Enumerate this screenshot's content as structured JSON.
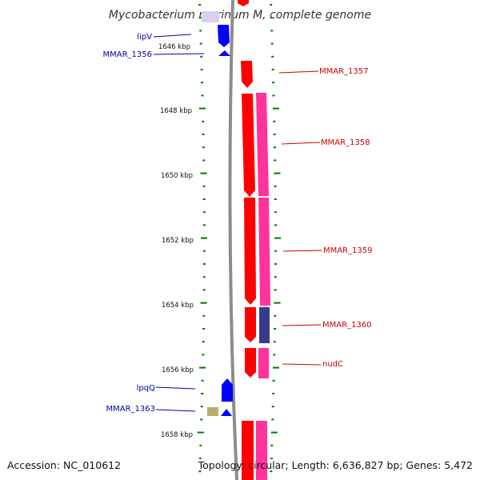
{
  "title": "Mycobacterium marinum M, complete genome",
  "footer": {
    "accession": "Accession: NC_010612",
    "topology": "Topology: circular; Length: 6,636,827 bp; Genes: 5,472"
  },
  "colors": {
    "backbone": "#8c8c8c",
    "cds_forward": "#ff0000",
    "cds_reverse": "#0000ff",
    "gene_forward": "#ff3399",
    "gene_other": "#3a3a8c",
    "pseudo": "#b8ad70",
    "tick": "#007700",
    "label_blue": "#0000aa",
    "label_red": "#cc0000"
  },
  "scale": {
    "labels": [
      "1646 kbp",
      "1648 kbp",
      "1650 kbp",
      "1652 kbp",
      "1654 kbp",
      "1656 kbp",
      "1658 kbp"
    ]
  },
  "labels_left": [
    "lipV",
    "MMAR_1356",
    "lpqQ",
    "MMAR_1363"
  ],
  "labels_right": [
    "MMAR_1357",
    "MMAR_1358",
    "MMAR_1359",
    "MMAR_1360",
    "nudC"
  ]
}
